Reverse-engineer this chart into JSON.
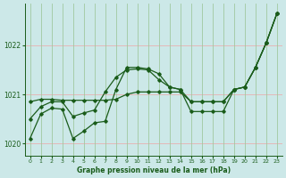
{
  "xlabel": "Graphe pression niveau de la mer (hPa)",
  "bg_color": "#cce8e8",
  "grid_color_h": "#e8b0b0",
  "grid_color_v": "#a0c8a0",
  "line_color": "#1a5c1a",
  "xlim": [
    -0.5,
    23.5
  ],
  "ylim": [
    1019.75,
    1022.85
  ],
  "yticks": [
    1020,
    1021,
    1022
  ],
  "xticks": [
    0,
    1,
    2,
    3,
    4,
    5,
    6,
    7,
    8,
    9,
    10,
    11,
    12,
    13,
    14,
    15,
    16,
    17,
    18,
    19,
    20,
    21,
    22,
    23
  ],
  "series1": [
    1020.85,
    1020.9,
    1020.9,
    1020.88,
    1020.88,
    1020.88,
    1020.88,
    1020.88,
    1020.9,
    1021.0,
    1021.05,
    1021.05,
    1021.05,
    1021.05,
    1021.05,
    1020.85,
    1020.85,
    1020.85,
    1020.85,
    1021.1,
    1021.15,
    1021.55,
    1022.05,
    1022.65
  ],
  "series2": [
    1020.5,
    1020.75,
    1020.85,
    1020.85,
    1020.55,
    1020.62,
    1020.68,
    1021.05,
    1021.35,
    1021.5,
    1021.52,
    1021.5,
    1021.3,
    1021.15,
    1021.1,
    1020.85,
    1020.85,
    1020.85,
    1020.85,
    1021.1,
    1021.15,
    1021.55,
    1022.05,
    1022.65
  ],
  "series3": [
    1020.1,
    1020.6,
    1020.72,
    1020.7,
    1020.1,
    1020.25,
    1020.42,
    1020.45,
    1021.1,
    1021.55,
    1021.55,
    1021.52,
    1021.42,
    1021.15,
    1021.1,
    1020.65,
    1020.65,
    1020.65,
    1020.65,
    1021.1,
    1021.15,
    1021.55,
    1022.05,
    1022.65
  ]
}
